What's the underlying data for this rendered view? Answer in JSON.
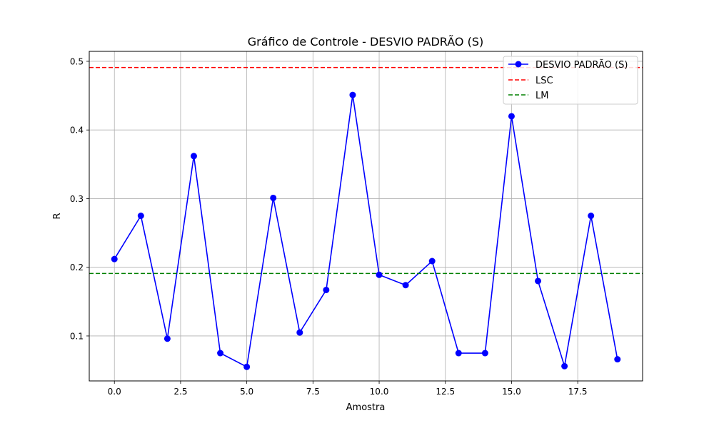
{
  "chart_data": {
    "type": "line",
    "title": "Gráfico de Controle - DESVIO PADRÃO (S)",
    "xlabel": "Amostra",
    "ylabel": "R",
    "xlim": [
      -0.95,
      19.95
    ],
    "ylim": [
      0.0345,
      0.5145
    ],
    "x_ticks": [
      0.0,
      2.5,
      5.0,
      7.5,
      10.0,
      12.5,
      15.0,
      17.5
    ],
    "x_tick_labels": [
      "0.0",
      "2.5",
      "5.0",
      "7.5",
      "10.0",
      "12.5",
      "15.0",
      "17.5"
    ],
    "y_ticks": [
      0.1,
      0.2,
      0.3,
      0.4,
      0.5
    ],
    "y_tick_labels": [
      "0.1",
      "0.2",
      "0.3",
      "0.4",
      "0.5"
    ],
    "grid": true,
    "legend_position": "top-right",
    "series": [
      {
        "name": "DESVIO PADRÃO (S)",
        "kind": "line-markers",
        "color": "#0000ff",
        "x": [
          0,
          1,
          2,
          3,
          4,
          5,
          6,
          7,
          8,
          9,
          10,
          11,
          12,
          13,
          14,
          15,
          16,
          17,
          18,
          19
        ],
        "values": [
          0.212,
          0.275,
          0.096,
          0.362,
          0.075,
          0.055,
          0.301,
          0.105,
          0.167,
          0.451,
          0.189,
          0.174,
          0.209,
          0.075,
          0.075,
          0.42,
          0.18,
          0.056,
          0.275,
          0.066
        ]
      },
      {
        "name": "LSC",
        "kind": "hline",
        "color": "#ff0000",
        "value": 0.491
      },
      {
        "name": "LM",
        "kind": "hline",
        "color": "#008000",
        "value": 0.191
      }
    ]
  }
}
